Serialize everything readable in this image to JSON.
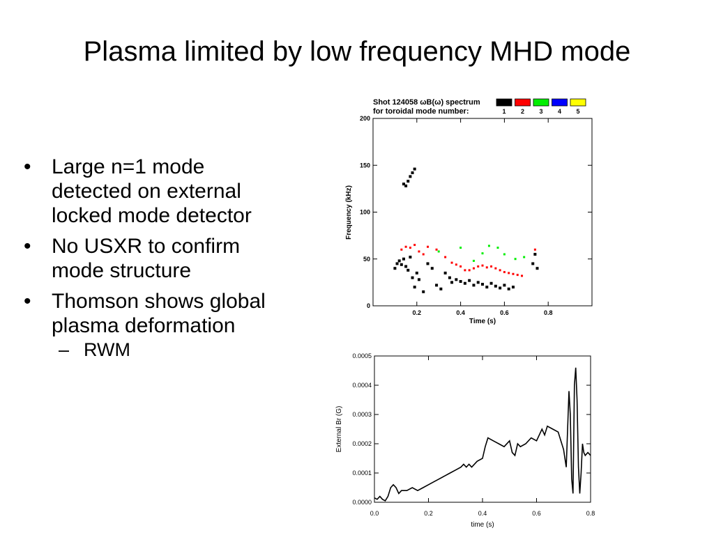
{
  "slide": {
    "title": "Plasma limited by low frequency MHD mode",
    "bullets": [
      {
        "text": "Large n=1 mode detected on external locked mode detector"
      },
      {
        "text": "No USXR to confirm mode structure"
      },
      {
        "text": "Thomson shows global plasma deformation",
        "sub": [
          "RWM"
        ]
      }
    ]
  },
  "chart_data": [
    {
      "type": "scatter",
      "title": "Shot 124058 ωB(ω) spectrum",
      "subtitle": "for toroidal mode number:",
      "xlabel": "Time (s)",
      "ylabel": "Frequency (kHz)",
      "xlim": [
        0,
        1.0
      ],
      "ylim": [
        0,
        200
      ],
      "xticks": [
        "0.2",
        "0.4",
        "0.6",
        "0.8"
      ],
      "xtick_values": [
        0.2,
        0.4,
        0.6,
        0.8
      ],
      "yticks": [
        "0",
        "50",
        "100",
        "150",
        "200"
      ],
      "ytick_values": [
        0,
        50,
        100,
        150,
        200
      ],
      "legend_placement": "top-right",
      "legend": [
        {
          "name": "1",
          "color": "#000000"
        },
        {
          "name": "2",
          "color": "#ff0000"
        },
        {
          "name": "3",
          "color": "#00ee00"
        },
        {
          "name": "4",
          "color": "#0000ff"
        },
        {
          "name": "5",
          "color": "#ffff00"
        }
      ],
      "series": [
        {
          "name": "1",
          "color": "#000000",
          "points": [
            [
              0.1,
              40
            ],
            [
              0.11,
              45
            ],
            [
              0.12,
              48
            ],
            [
              0.13,
              44
            ],
            [
              0.14,
              50
            ],
            [
              0.15,
              42
            ],
            [
              0.16,
              38
            ],
            [
              0.17,
              52
            ],
            [
              0.18,
              30
            ],
            [
              0.19,
              20
            ],
            [
              0.2,
              35
            ],
            [
              0.21,
              28
            ],
            [
              0.23,
              15
            ],
            [
              0.25,
              45
            ],
            [
              0.27,
              40
            ],
            [
              0.29,
              22
            ],
            [
              0.31,
              18
            ],
            [
              0.33,
              35
            ],
            [
              0.35,
              30
            ],
            [
              0.36,
              25
            ],
            [
              0.38,
              28
            ],
            [
              0.4,
              26
            ],
            [
              0.42,
              24
            ],
            [
              0.44,
              27
            ],
            [
              0.46,
              22
            ],
            [
              0.48,
              25
            ],
            [
              0.5,
              23
            ],
            [
              0.52,
              20
            ],
            [
              0.54,
              24
            ],
            [
              0.56,
              21
            ],
            [
              0.58,
              19
            ],
            [
              0.6,
              22
            ],
            [
              0.62,
              18
            ],
            [
              0.64,
              20
            ],
            [
              0.73,
              45
            ],
            [
              0.74,
              55
            ],
            [
              0.75,
              40
            ],
            [
              0.14,
              130
            ],
            [
              0.15,
              128
            ],
            [
              0.16,
              133
            ],
            [
              0.17,
              138
            ],
            [
              0.18,
              142
            ],
            [
              0.19,
              146
            ]
          ]
        },
        {
          "name": "2",
          "color": "#ff0000",
          "points": [
            [
              0.13,
              60
            ],
            [
              0.15,
              63
            ],
            [
              0.17,
              62
            ],
            [
              0.19,
              65
            ],
            [
              0.21,
              58
            ],
            [
              0.23,
              55
            ],
            [
              0.25,
              63
            ],
            [
              0.29,
              60
            ],
            [
              0.33,
              52
            ],
            [
              0.36,
              46
            ],
            [
              0.38,
              44
            ],
            [
              0.4,
              42
            ],
            [
              0.42,
              38
            ],
            [
              0.44,
              38
            ],
            [
              0.46,
              40
            ],
            [
              0.48,
              42
            ],
            [
              0.5,
              43
            ],
            [
              0.52,
              41
            ],
            [
              0.54,
              42
            ],
            [
              0.56,
              40
            ],
            [
              0.58,
              38
            ],
            [
              0.6,
              36
            ],
            [
              0.62,
              35
            ],
            [
              0.64,
              34
            ],
            [
              0.66,
              33
            ],
            [
              0.68,
              32
            ],
            [
              0.74,
              60
            ]
          ]
        },
        {
          "name": "3",
          "color": "#00ee00",
          "points": [
            [
              0.3,
              58
            ],
            [
              0.4,
              62
            ],
            [
              0.46,
              48
            ],
            [
              0.5,
              56
            ],
            [
              0.53,
              64
            ],
            [
              0.57,
              62
            ],
            [
              0.6,
              55
            ],
            [
              0.65,
              50
            ],
            [
              0.69,
              52
            ]
          ]
        }
      ]
    },
    {
      "type": "line",
      "xlabel": "time (s)",
      "ylabel": "External Br (G)",
      "xlim": [
        0,
        0.8
      ],
      "ylim": [
        0,
        0.0005
      ],
      "xticks": [
        "0.0",
        "0.2",
        "0.4",
        "0.6",
        "0.8"
      ],
      "xtick_values": [
        0.0,
        0.2,
        0.4,
        0.6,
        0.8
      ],
      "yticks": [
        "0.0000",
        "0.0001",
        "0.0002",
        "0.0003",
        "0.0004",
        "0.0005"
      ],
      "ytick_values": [
        0.0,
        0.0001,
        0.0002,
        0.0003,
        0.0004,
        0.0005
      ],
      "series": [
        {
          "name": "",
          "x": [
            0.0,
            0.01,
            0.02,
            0.03,
            0.04,
            0.05,
            0.06,
            0.07,
            0.08,
            0.09,
            0.1,
            0.12,
            0.14,
            0.16,
            0.18,
            0.2,
            0.22,
            0.24,
            0.26,
            0.28,
            0.3,
            0.32,
            0.33,
            0.34,
            0.35,
            0.36,
            0.38,
            0.4,
            0.41,
            0.42,
            0.44,
            0.46,
            0.48,
            0.5,
            0.51,
            0.52,
            0.53,
            0.54,
            0.56,
            0.58,
            0.6,
            0.62,
            0.63,
            0.64,
            0.66,
            0.68,
            0.7,
            0.71,
            0.72,
            0.725,
            0.73,
            0.735,
            0.74,
            0.745,
            0.75,
            0.755,
            0.76,
            0.765,
            0.77,
            0.775,
            0.78,
            0.79,
            0.8
          ],
          "y": [
            1.5e-05,
            1e-05,
            2e-05,
            1e-05,
            5e-06,
            2e-05,
            5e-05,
            6e-05,
            5e-05,
            3e-05,
            4e-05,
            4e-05,
            5e-05,
            4e-05,
            5e-05,
            6e-05,
            7e-05,
            8e-05,
            9e-05,
            0.0001,
            0.00011,
            0.00012,
            0.00013,
            0.00012,
            0.00013,
            0.00012,
            0.00014,
            0.00015,
            0.00019,
            0.00022,
            0.00021,
            0.0002,
            0.00019,
            0.00021,
            0.00017,
            0.00016,
            0.0002,
            0.00019,
            0.0002,
            0.00022,
            0.00021,
            0.00025,
            0.00023,
            0.00026,
            0.00025,
            0.00024,
            0.00018,
            0.00012,
            0.00038,
            0.0003,
            8e-05,
            3e-05,
            0.0004,
            0.00046,
            0.00035,
            0.00012,
            3e-05,
            0.0001,
            0.0002,
            0.00017,
            0.00016,
            0.00017,
            0.00016
          ]
        }
      ]
    }
  ]
}
